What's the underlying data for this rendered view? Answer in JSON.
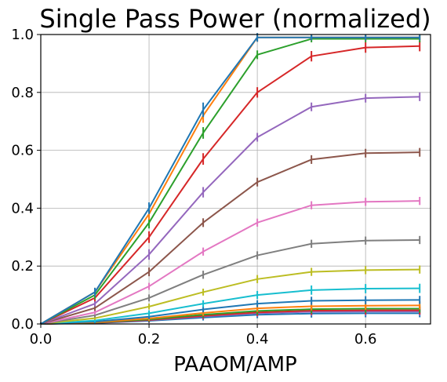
{
  "chart_data": {
    "type": "line",
    "title": "Single Pass Power (normalized)",
    "xlabel": "PAAOM/AMP",
    "ylabel": "",
    "xlim": [
      0.0,
      0.72
    ],
    "ylim": [
      0.0,
      1.0
    ],
    "xticks": [
      "0.0",
      "0.2",
      "0.4",
      "0.6"
    ],
    "yticks": [
      "0.0",
      "0.2",
      "0.4",
      "0.6",
      "0.8",
      "1.0"
    ],
    "grid": true,
    "legend": "none",
    "x": [
      0.0,
      0.1,
      0.2,
      0.3,
      0.4,
      0.5,
      0.6,
      0.7
    ],
    "series": [
      {
        "color": "#1f77b4",
        "values": [
          0.0,
          0.11,
          0.4,
          0.74,
          0.99,
          0.99,
          0.99,
          0.99
        ],
        "errors": [
          0.005,
          0.015,
          0.02,
          0.025,
          0.015,
          0.01,
          0.01,
          0.01
        ]
      },
      {
        "color": "#ff7f0e",
        "values": [
          0.0,
          0.11,
          0.38,
          0.72,
          0.99,
          0.99,
          0.99,
          0.99
        ],
        "errors": [
          0.005,
          0.015,
          0.02,
          0.025,
          0.015,
          0.01,
          0.01,
          0.01
        ]
      },
      {
        "color": "#2ca02c",
        "values": [
          0.0,
          0.1,
          0.35,
          0.66,
          0.93,
          0.985,
          0.985,
          0.985
        ],
        "errors": [
          0.005,
          0.015,
          0.02,
          0.02,
          0.015,
          0.012,
          0.012,
          0.012
        ]
      },
      {
        "color": "#d62728",
        "values": [
          0.0,
          0.09,
          0.3,
          0.57,
          0.8,
          0.925,
          0.955,
          0.96
        ],
        "errors": [
          0.005,
          0.012,
          0.02,
          0.02,
          0.018,
          0.018,
          0.018,
          0.018
        ]
      },
      {
        "color": "#9467bd",
        "values": [
          0.0,
          0.07,
          0.24,
          0.455,
          0.645,
          0.75,
          0.78,
          0.785
        ],
        "errors": [
          0.005,
          0.01,
          0.018,
          0.018,
          0.015,
          0.015,
          0.015,
          0.015
        ]
      },
      {
        "color": "#8c564b",
        "values": [
          0.0,
          0.055,
          0.18,
          0.35,
          0.49,
          0.568,
          0.59,
          0.593
        ],
        "errors": [
          0.004,
          0.01,
          0.015,
          0.015,
          0.015,
          0.015,
          0.015,
          0.015
        ]
      },
      {
        "color": "#e377c2",
        "values": [
          0.0,
          0.04,
          0.13,
          0.25,
          0.35,
          0.41,
          0.422,
          0.425
        ],
        "errors": [
          0.004,
          0.008,
          0.012,
          0.014,
          0.014,
          0.014,
          0.014,
          0.014
        ]
      },
      {
        "color": "#7f7f7f",
        "values": [
          0.0,
          0.03,
          0.09,
          0.17,
          0.237,
          0.277,
          0.288,
          0.29
        ],
        "errors": [
          0.004,
          0.008,
          0.012,
          0.014,
          0.014,
          0.014,
          0.014,
          0.014
        ]
      },
      {
        "color": "#bcbd22",
        "values": [
          0.0,
          0.02,
          0.06,
          0.11,
          0.155,
          0.18,
          0.186,
          0.188
        ],
        "errors": [
          0.004,
          0.006,
          0.01,
          0.012,
          0.014,
          0.014,
          0.014,
          0.014
        ]
      },
      {
        "color": "#17becf",
        "values": [
          0.0,
          0.012,
          0.037,
          0.07,
          0.1,
          0.117,
          0.122,
          0.123
        ],
        "errors": [
          0.004,
          0.006,
          0.01,
          0.012,
          0.014,
          0.016,
          0.016,
          0.016
        ]
      },
      {
        "color": "#1f77b4",
        "values": [
          0.0,
          0.008,
          0.025,
          0.05,
          0.07,
          0.08,
          0.082,
          0.083
        ],
        "errors": [
          0.004,
          0.006,
          0.008,
          0.01,
          0.012,
          0.014,
          0.014,
          0.014
        ]
      },
      {
        "color": "#ff7f0e",
        "values": [
          0.0,
          0.006,
          0.019,
          0.038,
          0.054,
          0.061,
          0.063,
          0.064
        ],
        "errors": [
          0.004,
          0.005,
          0.008,
          0.01,
          0.012,
          0.014,
          0.014,
          0.014
        ]
      },
      {
        "color": "#2ca02c",
        "values": [
          0.0,
          0.005,
          0.016,
          0.032,
          0.045,
          0.051,
          0.053,
          0.053
        ],
        "errors": [
          0.004,
          0.005,
          0.008,
          0.01,
          0.012,
          0.014,
          0.014,
          0.014
        ]
      },
      {
        "color": "#d62728",
        "values": [
          0.0,
          0.004,
          0.014,
          0.028,
          0.04,
          0.046,
          0.047,
          0.047
        ],
        "errors": [
          0.004,
          0.005,
          0.008,
          0.01,
          0.012,
          0.014,
          0.014,
          0.014
        ]
      },
      {
        "color": "#9467bd",
        "values": [
          0.0,
          0.004,
          0.013,
          0.026,
          0.037,
          0.042,
          0.043,
          0.043
        ],
        "errors": [
          0.004,
          0.005,
          0.008,
          0.01,
          0.012,
          0.014,
          0.014,
          0.014
        ]
      },
      {
        "color": "#1f77b4",
        "values": [
          0.0,
          0.003,
          0.011,
          0.022,
          0.032,
          0.036,
          0.037,
          0.037
        ],
        "errors": [
          0.004,
          0.005,
          0.008,
          0.01,
          0.012,
          0.014,
          0.014,
          0.014
        ]
      }
    ]
  }
}
